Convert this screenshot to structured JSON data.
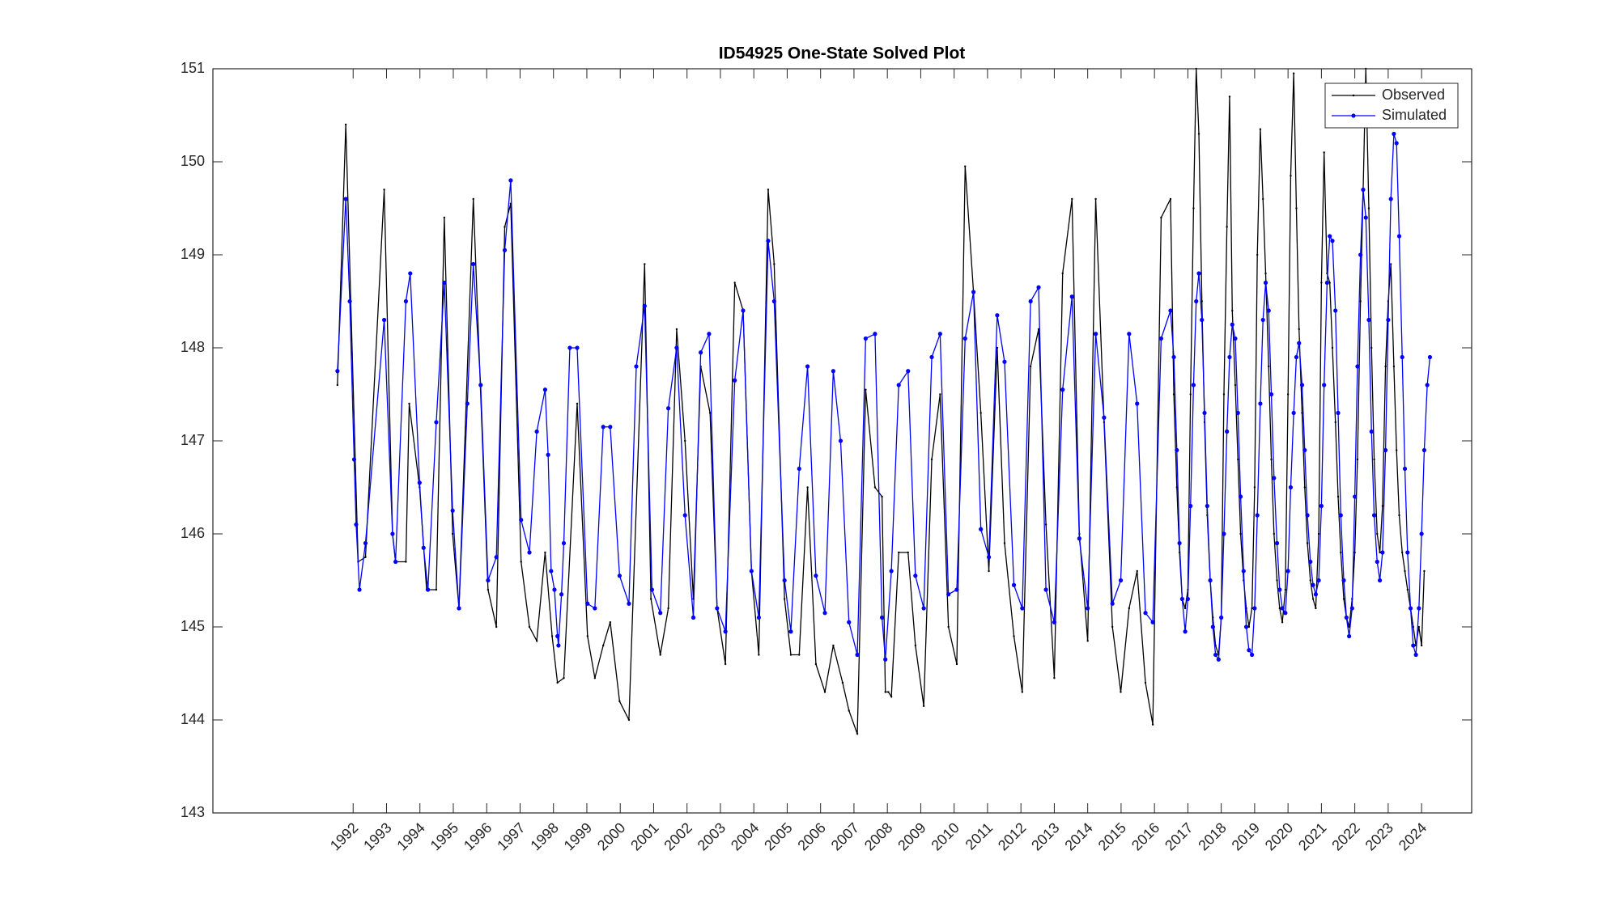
{
  "chart_data": {
    "type": "line",
    "title": "ID54925 One-State Solved Plot",
    "xlim": [
      1987.8,
      2025.5
    ],
    "ylim": [
      143,
      151
    ],
    "xticks": [
      1992,
      1993,
      1994,
      1995,
      1996,
      1997,
      1998,
      1999,
      2000,
      2001,
      2002,
      2003,
      2004,
      2005,
      2006,
      2007,
      2008,
      2009,
      2010,
      2011,
      2012,
      2013,
      2014,
      2015,
      2016,
      2017,
      2018,
      2019,
      2020,
      2021,
      2022,
      2023,
      2024
    ],
    "yticks": [
      143,
      144,
      145,
      146,
      147,
      148,
      149,
      150,
      151
    ],
    "legend": "northeast",
    "series": [
      {
        "name": "Observed",
        "color": "#000000",
        "marker_size": 1.2,
        "x": [
          1991.53,
          1991.78,
          1992.15,
          1992.37,
          1992.93,
          1993.18,
          1993.27,
          1993.58,
          1993.68,
          1993.99,
          1994.2,
          1994.49,
          1994.73,
          1994.98,
          1995.17,
          1995.6,
          1996.04,
          1996.29,
          1996.54,
          1996.72,
          1997.03,
          1997.28,
          1997.5,
          1997.75,
          1997.96,
          1998.12,
          1998.31,
          1998.71,
          1999.02,
          1999.24,
          1999.49,
          1999.7,
          1999.98,
          2000.26,
          2000.73,
          2000.92,
          2001.2,
          2001.44,
          2001.69,
          2001.94,
          2002.19,
          2002.41,
          2002.69,
          2002.9,
          2003.15,
          2003.43,
          2003.68,
          2003.93,
          2004.15,
          2004.43,
          2004.61,
          2004.92,
          2005.11,
          2005.36,
          2005.61,
          2005.86,
          2006.13,
          2006.38,
          2006.66,
          2006.85,
          2007.1,
          2007.35,
          2007.63,
          2007.84,
          2007.94,
          2008.03,
          2008.12,
          2008.34,
          2008.62,
          2008.84,
          2009.09,
          2009.33,
          2009.58,
          2009.83,
          2010.08,
          2010.33,
          2010.58,
          2010.8,
          2011.04,
          2011.29,
          2011.51,
          2011.79,
          2012.04,
          2012.29,
          2012.53,
          2012.75,
          2013.0,
          2013.25,
          2013.53,
          2013.75,
          2014.0,
          2014.24,
          2014.49,
          2014.74,
          2014.99,
          2015.24,
          2015.48,
          2015.73,
          2015.95,
          2016.2,
          2016.48,
          2016.58,
          2016.67,
          2016.75,
          2016.83,
          2016.92,
          2017.0,
          2017.08,
          2017.17,
          2017.25,
          2017.33,
          2017.42,
          2017.5,
          2017.58,
          2017.67,
          2017.75,
          2017.83,
          2017.92,
          2018.0,
          2018.08,
          2018.17,
          2018.25,
          2018.33,
          2018.42,
          2018.5,
          2018.58,
          2018.67,
          2018.75,
          2018.83,
          2018.92,
          2019.0,
          2019.08,
          2019.17,
          2019.25,
          2019.33,
          2019.42,
          2019.5,
          2019.58,
          2019.67,
          2019.75,
          2019.83,
          2019.92,
          2020.0,
          2020.08,
          2020.17,
          2020.25,
          2020.33,
          2020.42,
          2020.5,
          2020.58,
          2020.67,
          2020.75,
          2020.83,
          2020.92,
          2021.0,
          2021.08,
          2021.17,
          2021.25,
          2021.33,
          2021.42,
          2021.5,
          2021.58,
          2021.67,
          2021.75,
          2021.83,
          2021.92,
          2022.0,
          2022.08,
          2022.17,
          2022.25,
          2022.33,
          2022.42,
          2022.5,
          2022.58,
          2022.67,
          2022.75,
          2022.83,
          2022.92,
          2023.0,
          2023.08,
          2023.17,
          2023.25,
          2023.33,
          2023.42,
          2023.5,
          2023.58,
          2023.67,
          2023.75,
          2023.83,
          2023.92,
          2024.0,
          2024.08
        ],
        "values": [
          147.6,
          150.4,
          145.7,
          145.75,
          149.7,
          146.0,
          145.7,
          145.7,
          147.4,
          146.5,
          145.4,
          145.4,
          149.4,
          146.0,
          145.2,
          149.6,
          145.4,
          145.0,
          149.3,
          149.55,
          145.7,
          145.0,
          144.85,
          145.8,
          144.9,
          144.4,
          144.45,
          147.4,
          144.9,
          144.45,
          144.8,
          145.05,
          144.2,
          144.0,
          148.9,
          145.3,
          144.7,
          145.2,
          148.2,
          147.0,
          145.3,
          147.8,
          147.3,
          145.2,
          144.6,
          148.7,
          148.4,
          145.6,
          144.7,
          149.7,
          148.9,
          145.3,
          144.7,
          144.7,
          146.5,
          144.6,
          144.3,
          144.8,
          144.4,
          144.1,
          143.85,
          147.55,
          146.5,
          146.4,
          144.3,
          144.3,
          144.25,
          145.8,
          145.8,
          144.8,
          144.15,
          146.8,
          147.5,
          145.0,
          144.6,
          149.95,
          148.6,
          147.3,
          145.6,
          148.0,
          145.9,
          144.9,
          144.3,
          147.8,
          148.2,
          146.1,
          144.45,
          148.8,
          149.6,
          146.0,
          144.85,
          149.6,
          147.2,
          145.0,
          144.3,
          145.2,
          145.6,
          144.4,
          143.95,
          149.4,
          149.6,
          147.5,
          146.5,
          145.8,
          145.3,
          145.2,
          145.4,
          147.5,
          149.5,
          151.0,
          150.3,
          148.5,
          147.2,
          146.2,
          145.5,
          145.1,
          144.8,
          144.7,
          145.1,
          147.5,
          149.3,
          150.7,
          148.4,
          147.6,
          146.8,
          146.0,
          145.5,
          145.2,
          145.0,
          145.2,
          146.5,
          149.0,
          150.35,
          149.6,
          148.8,
          147.8,
          146.8,
          146.0,
          145.5,
          145.2,
          145.05,
          145.4,
          147.5,
          149.85,
          150.95,
          149.5,
          148.2,
          147.3,
          146.5,
          145.9,
          145.5,
          145.3,
          145.2,
          146.0,
          148.7,
          150.1,
          148.8,
          148.7,
          148.0,
          147.2,
          146.4,
          145.8,
          145.3,
          145.1,
          145.0,
          145.3,
          145.8,
          146.8,
          148.5,
          149.7,
          151.0,
          149.5,
          148.0,
          146.8,
          146.0,
          145.8,
          146.3,
          147.8,
          148.5,
          148.9,
          147.8,
          146.9,
          146.2,
          145.8,
          145.6,
          145.4,
          145.2,
          145.0,
          144.8,
          145.0,
          144.8,
          145.6
        ]
      },
      {
        "name": "Simulated",
        "color": "#0000ff",
        "marker_size": 2.6,
        "x": [
          1991.53,
          1991.78,
          1991.9,
          1992.03,
          1992.09,
          1992.19,
          1992.37,
          1992.93,
          1993.18,
          1993.27,
          1993.58,
          1993.71,
          1993.99,
          1994.11,
          1994.24,
          1994.49,
          1994.73,
          1994.98,
          1995.17,
          1995.42,
          1995.6,
          1995.82,
          1996.04,
          1996.29,
          1996.54,
          1996.72,
          1997.03,
          1997.28,
          1997.5,
          1997.75,
          1997.84,
          1997.93,
          1998.03,
          1998.12,
          1998.15,
          1998.24,
          1998.31,
          1998.49,
          1998.71,
          1999.02,
          1999.24,
          1999.49,
          1999.7,
          1999.98,
          2000.26,
          2000.48,
          2000.73,
          2000.95,
          2001.2,
          2001.44,
          2001.69,
          2001.94,
          2002.19,
          2002.41,
          2002.66,
          2002.9,
          2003.15,
          2003.43,
          2003.68,
          2003.93,
          2004.15,
          2004.43,
          2004.61,
          2004.92,
          2005.11,
          2005.36,
          2005.61,
          2005.86,
          2006.13,
          2006.38,
          2006.6,
          2006.85,
          2007.1,
          2007.35,
          2007.63,
          2007.84,
          2007.94,
          2008.12,
          2008.34,
          2008.62,
          2008.84,
          2009.09,
          2009.33,
          2009.58,
          2009.83,
          2010.08,
          2010.33,
          2010.58,
          2010.8,
          2011.04,
          2011.29,
          2011.51,
          2011.79,
          2012.04,
          2012.29,
          2012.53,
          2012.75,
          2013.0,
          2013.25,
          2013.53,
          2013.75,
          2014.0,
          2014.24,
          2014.49,
          2014.74,
          2014.99,
          2015.24,
          2015.48,
          2015.73,
          2015.95,
          2016.2,
          2016.48,
          2016.58,
          2016.67,
          2016.75,
          2016.83,
          2016.92,
          2017.0,
          2017.08,
          2017.17,
          2017.25,
          2017.33,
          2017.42,
          2017.5,
          2017.58,
          2017.67,
          2017.75,
          2017.83,
          2017.92,
          2018.0,
          2018.08,
          2018.17,
          2018.25,
          2018.33,
          2018.42,
          2018.5,
          2018.58,
          2018.67,
          2018.75,
          2018.83,
          2018.92,
          2019.0,
          2019.08,
          2019.17,
          2019.25,
          2019.33,
          2019.42,
          2019.5,
          2019.58,
          2019.67,
          2019.75,
          2019.83,
          2019.92,
          2020.0,
          2020.08,
          2020.17,
          2020.25,
          2020.33,
          2020.42,
          2020.5,
          2020.58,
          2020.67,
          2020.75,
          2020.83,
          2020.92,
          2021.0,
          2021.08,
          2021.17,
          2021.25,
          2021.33,
          2021.42,
          2021.5,
          2021.58,
          2021.67,
          2021.75,
          2021.83,
          2021.92,
          2022.0,
          2022.08,
          2022.17,
          2022.25,
          2022.33,
          2022.42,
          2022.5,
          2022.58,
          2022.67,
          2022.75,
          2022.83,
          2022.92,
          2023.0,
          2023.08,
          2023.17,
          2023.25,
          2023.33,
          2023.42,
          2023.5,
          2023.58,
          2023.67,
          2023.75,
          2023.83,
          2023.92,
          2024.0,
          2024.08,
          2024.17,
          2024.25
        ],
        "values": [
          147.75,
          149.6,
          148.5,
          146.8,
          146.1,
          145.4,
          145.9,
          148.3,
          146.0,
          145.7,
          148.5,
          148.8,
          146.55,
          145.85,
          145.4,
          147.2,
          148.7,
          146.25,
          145.2,
          147.4,
          148.9,
          147.6,
          145.5,
          145.75,
          149.05,
          149.8,
          146.15,
          145.8,
          147.1,
          147.55,
          146.85,
          145.6,
          145.4,
          144.9,
          144.8,
          145.35,
          145.9,
          148.0,
          148.0,
          145.25,
          145.2,
          147.15,
          147.15,
          145.55,
          145.25,
          147.8,
          148.45,
          145.4,
          145.15,
          147.35,
          148.0,
          146.2,
          145.1,
          147.95,
          148.15,
          145.2,
          144.95,
          147.65,
          148.4,
          145.6,
          145.1,
          149.15,
          148.5,
          145.5,
          144.95,
          146.7,
          147.8,
          145.55,
          145.15,
          147.75,
          147.0,
          145.05,
          144.7,
          148.1,
          148.15,
          145.1,
          144.65,
          145.6,
          147.6,
          147.75,
          145.55,
          145.2,
          147.9,
          148.15,
          145.35,
          145.4,
          148.1,
          148.6,
          146.05,
          145.75,
          148.35,
          147.85,
          145.45,
          145.2,
          148.5,
          148.65,
          145.4,
          145.05,
          147.55,
          148.55,
          145.95,
          145.2,
          148.15,
          147.25,
          145.25,
          145.5,
          148.15,
          147.4,
          145.15,
          145.05,
          148.1,
          148.4,
          147.9,
          146.9,
          145.9,
          145.3,
          144.95,
          145.3,
          146.3,
          147.6,
          148.5,
          148.8,
          148.3,
          147.3,
          146.3,
          145.5,
          145.0,
          144.7,
          144.65,
          145.1,
          146.0,
          147.1,
          147.9,
          148.25,
          148.1,
          147.3,
          146.4,
          145.6,
          145.0,
          144.75,
          144.7,
          145.2,
          146.2,
          147.4,
          148.3,
          148.7,
          148.4,
          147.5,
          146.6,
          145.9,
          145.4,
          145.2,
          145.15,
          145.6,
          146.5,
          147.3,
          147.9,
          148.05,
          147.6,
          146.9,
          146.2,
          145.7,
          145.45,
          145.35,
          145.5,
          146.3,
          147.6,
          148.7,
          149.2,
          149.15,
          148.4,
          147.3,
          146.2,
          145.5,
          145.1,
          144.9,
          145.2,
          146.4,
          147.8,
          149.0,
          149.7,
          149.4,
          148.3,
          147.1,
          146.2,
          145.7,
          145.5,
          145.8,
          146.9,
          148.3,
          149.6,
          150.3,
          150.2,
          149.2,
          147.9,
          146.7,
          145.8,
          145.2,
          144.8,
          144.7,
          145.2,
          146.0,
          146.9,
          147.6,
          147.9
        ]
      }
    ]
  }
}
